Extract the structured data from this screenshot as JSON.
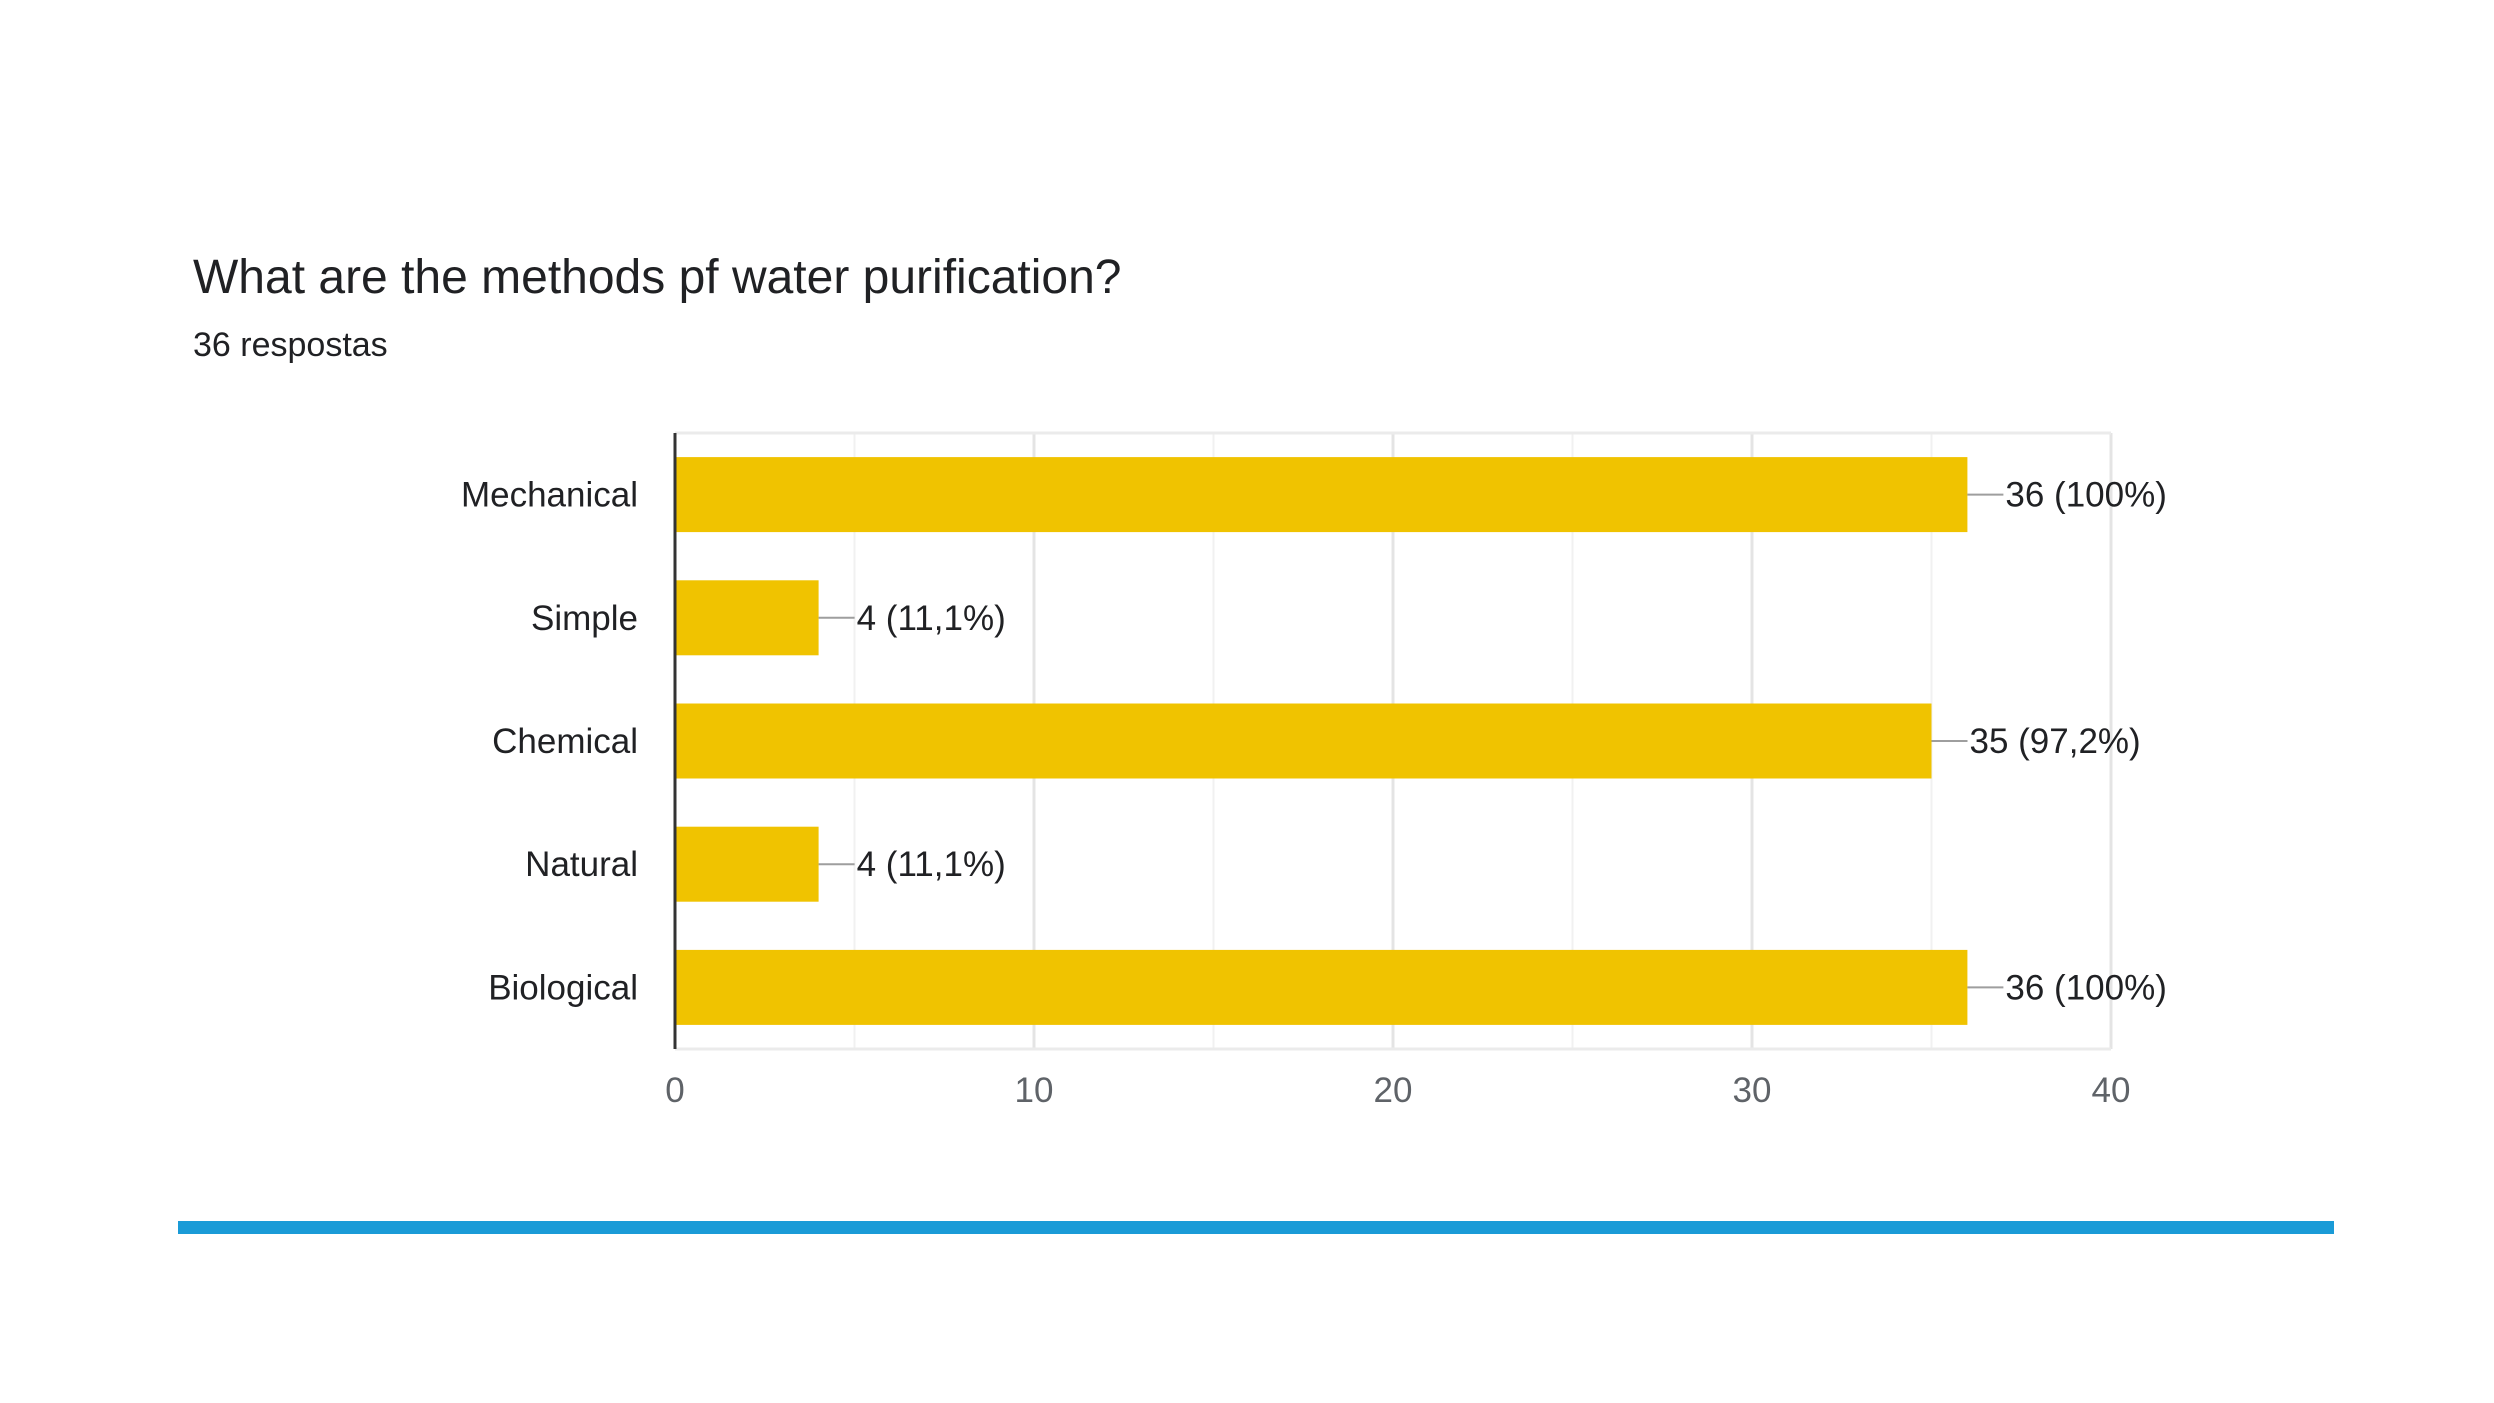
{
  "question": {
    "title": "What are the methods pf water purification?",
    "responses": "36 respostas"
  },
  "colors": {
    "bar": "#F0C300",
    "accent": "#1A9BD7",
    "grid": "#E8E8E8",
    "axis": "#333333",
    "text": "#202124"
  },
  "chart_data": {
    "type": "bar",
    "orientation": "horizontal",
    "categories": [
      "Mechanical",
      "Simple",
      "Chemical",
      "Natural",
      "Biological"
    ],
    "values": [
      36,
      4,
      35,
      4,
      36
    ],
    "data_labels": [
      "36 (100%)",
      "4 (11,1%)",
      "35 (97,2%)",
      "4 (11,1%)",
      "36 (100%)"
    ],
    "xlim": [
      0,
      40
    ],
    "xticks": [
      0,
      10,
      20,
      30,
      40
    ],
    "grid": true
  }
}
